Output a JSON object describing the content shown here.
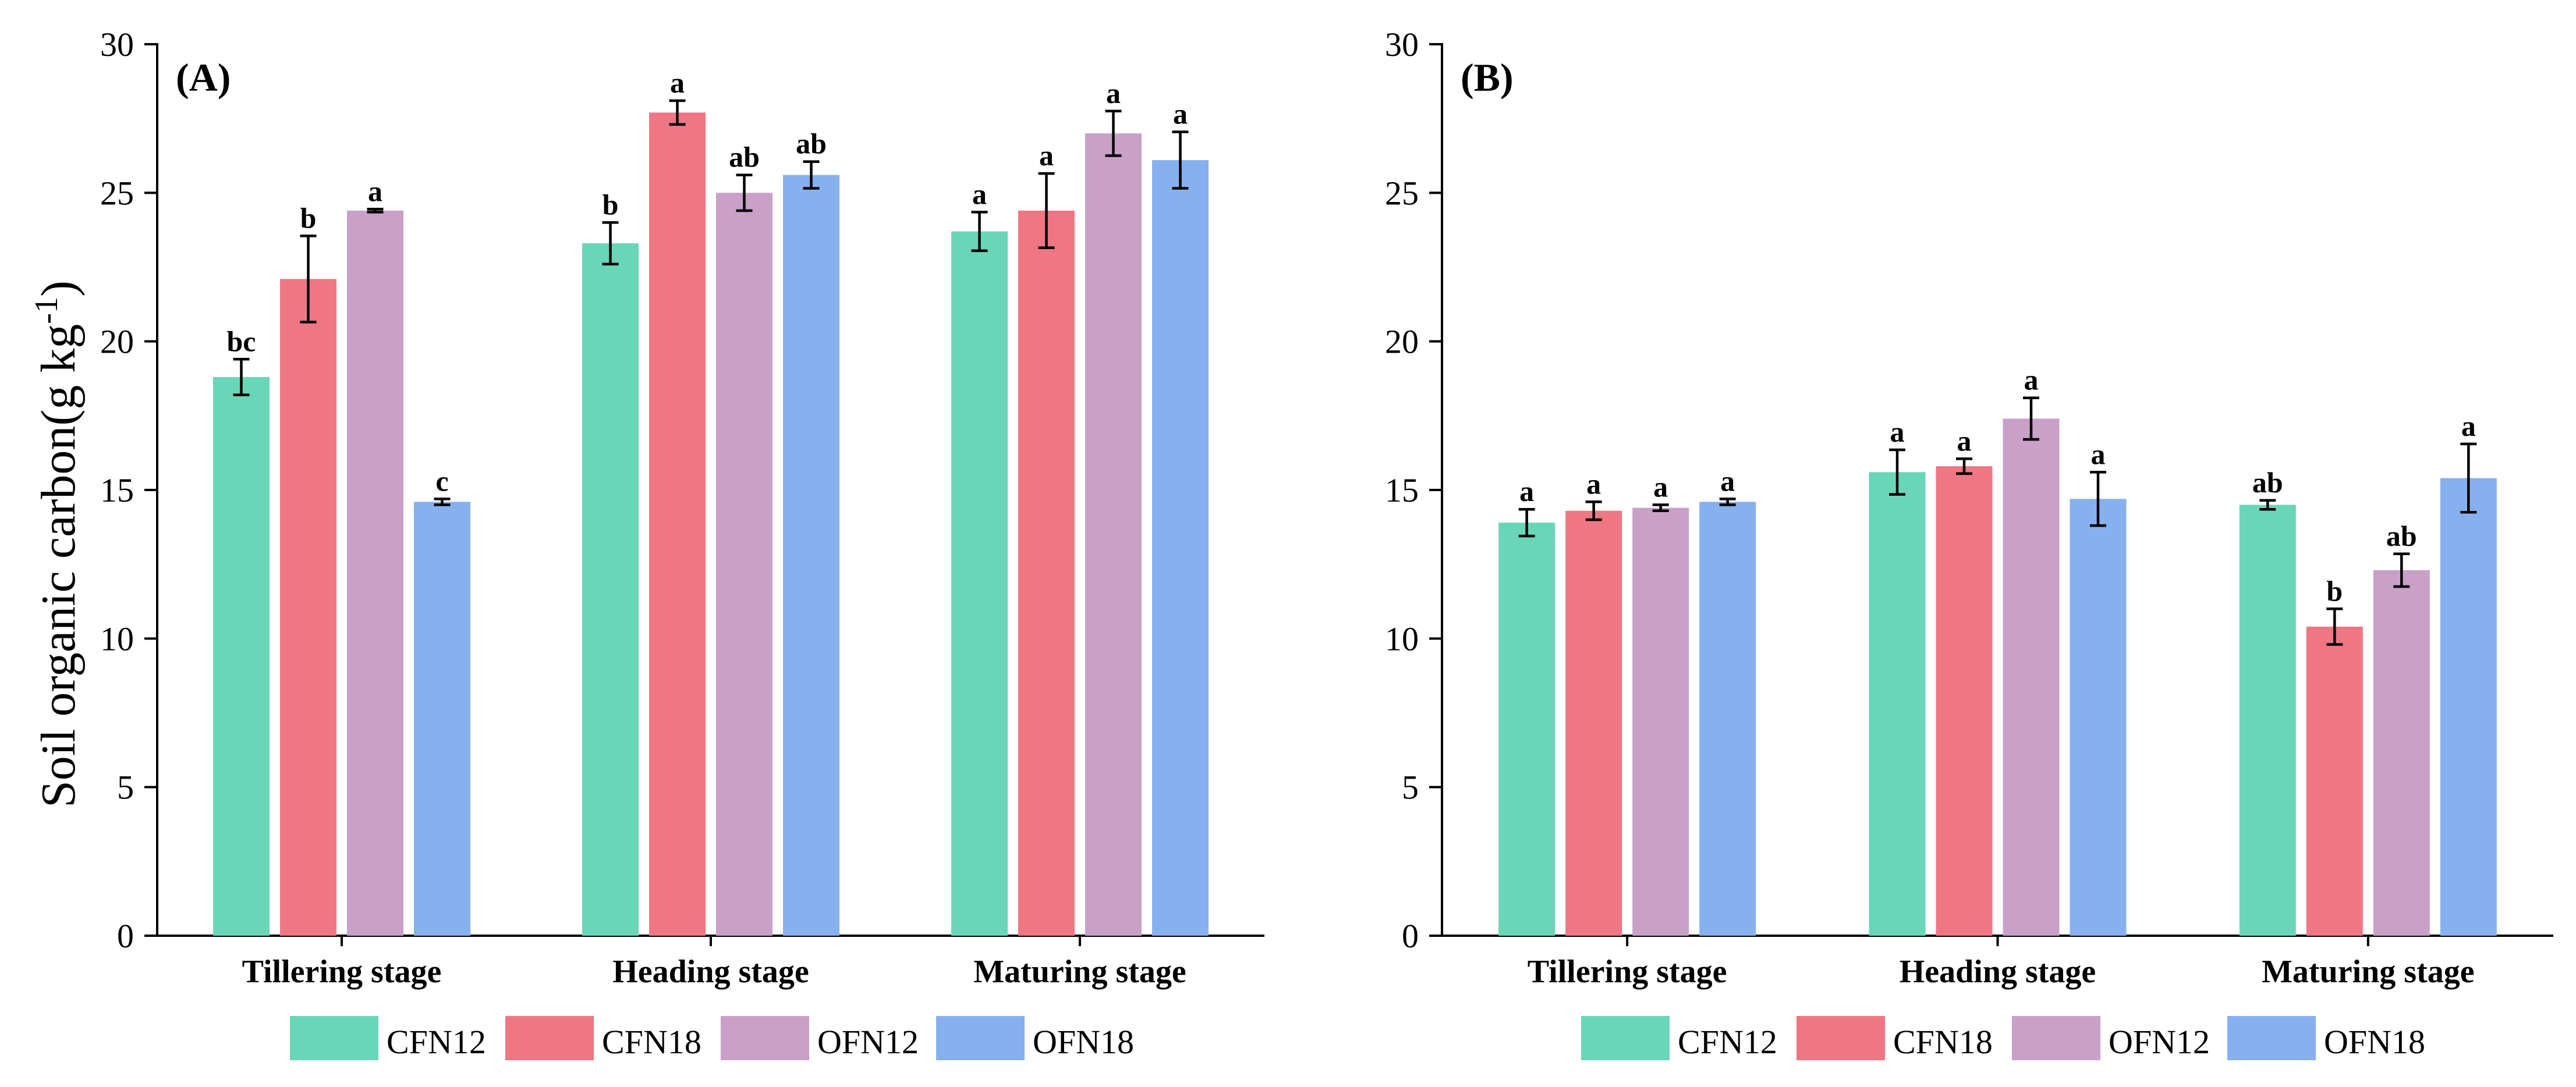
{
  "chart_data": {
    "type": "bar",
    "ylabel": "Soil organic carbon(g kg",
    "ylabel_superscript": "-1",
    "ylabel_close": ")",
    "categories": [
      "Tillering stage",
      "Heading stage",
      "Maturing stage"
    ],
    "legend": [
      {
        "name": "CFN12",
        "color": "#69d6b7"
      },
      {
        "name": "CFN18",
        "color": "#ee7783"
      },
      {
        "name": "OFN12",
        "color": "#c8a0c8"
      },
      {
        "name": "OFN18",
        "color": "#87b0ee"
      }
    ],
    "panels": [
      {
        "label": "(A)",
        "ylim": [
          0,
          30
        ],
        "yticks": [
          0,
          5,
          10,
          15,
          20,
          25,
          30
        ],
        "series": [
          {
            "name": "CFN12",
            "values": [
              18.8,
              23.3,
              23.7
            ],
            "errors": [
              0.6,
              0.7,
              0.65
            ],
            "significance": [
              "bc",
              "b",
              "a"
            ]
          },
          {
            "name": "CFN18",
            "values": [
              22.1,
              27.7,
              24.4
            ],
            "errors": [
              1.45,
              0.4,
              1.25
            ],
            "significance": [
              "b",
              "a",
              "a"
            ]
          },
          {
            "name": "OFN12",
            "values": [
              24.4,
              25.0,
              27.0
            ],
            "errors": [
              0.05,
              0.6,
              0.75
            ],
            "significance": [
              "a",
              "ab",
              "a"
            ]
          },
          {
            "name": "OFN18",
            "values": [
              14.6,
              25.6,
              26.1
            ],
            "errors": [
              0.1,
              0.45,
              0.95
            ],
            "significance": [
              "c",
              "ab",
              "a"
            ]
          }
        ]
      },
      {
        "label": "(B)",
        "ylim": [
          0,
          30
        ],
        "yticks": [
          0,
          5,
          10,
          15,
          20,
          25,
          30
        ],
        "series": [
          {
            "name": "CFN12",
            "values": [
              13.9,
              15.6,
              14.5
            ],
            "errors": [
              0.45,
              0.75,
              0.15
            ],
            "significance": [
              "a",
              "a",
              "ab"
            ]
          },
          {
            "name": "CFN18",
            "values": [
              14.3,
              15.8,
              10.4
            ],
            "errors": [
              0.3,
              0.25,
              0.6
            ],
            "significance": [
              "a",
              "a",
              "b"
            ]
          },
          {
            "name": "OFN12",
            "values": [
              14.4,
              17.4,
              12.3
            ],
            "errors": [
              0.1,
              0.7,
              0.55
            ],
            "significance": [
              "a",
              "a",
              "ab"
            ]
          },
          {
            "name": "OFN18",
            "values": [
              14.6,
              14.7,
              15.4
            ],
            "errors": [
              0.1,
              0.9,
              1.15
            ],
            "significance": [
              "a",
              "a",
              "a"
            ]
          }
        ]
      }
    ]
  }
}
